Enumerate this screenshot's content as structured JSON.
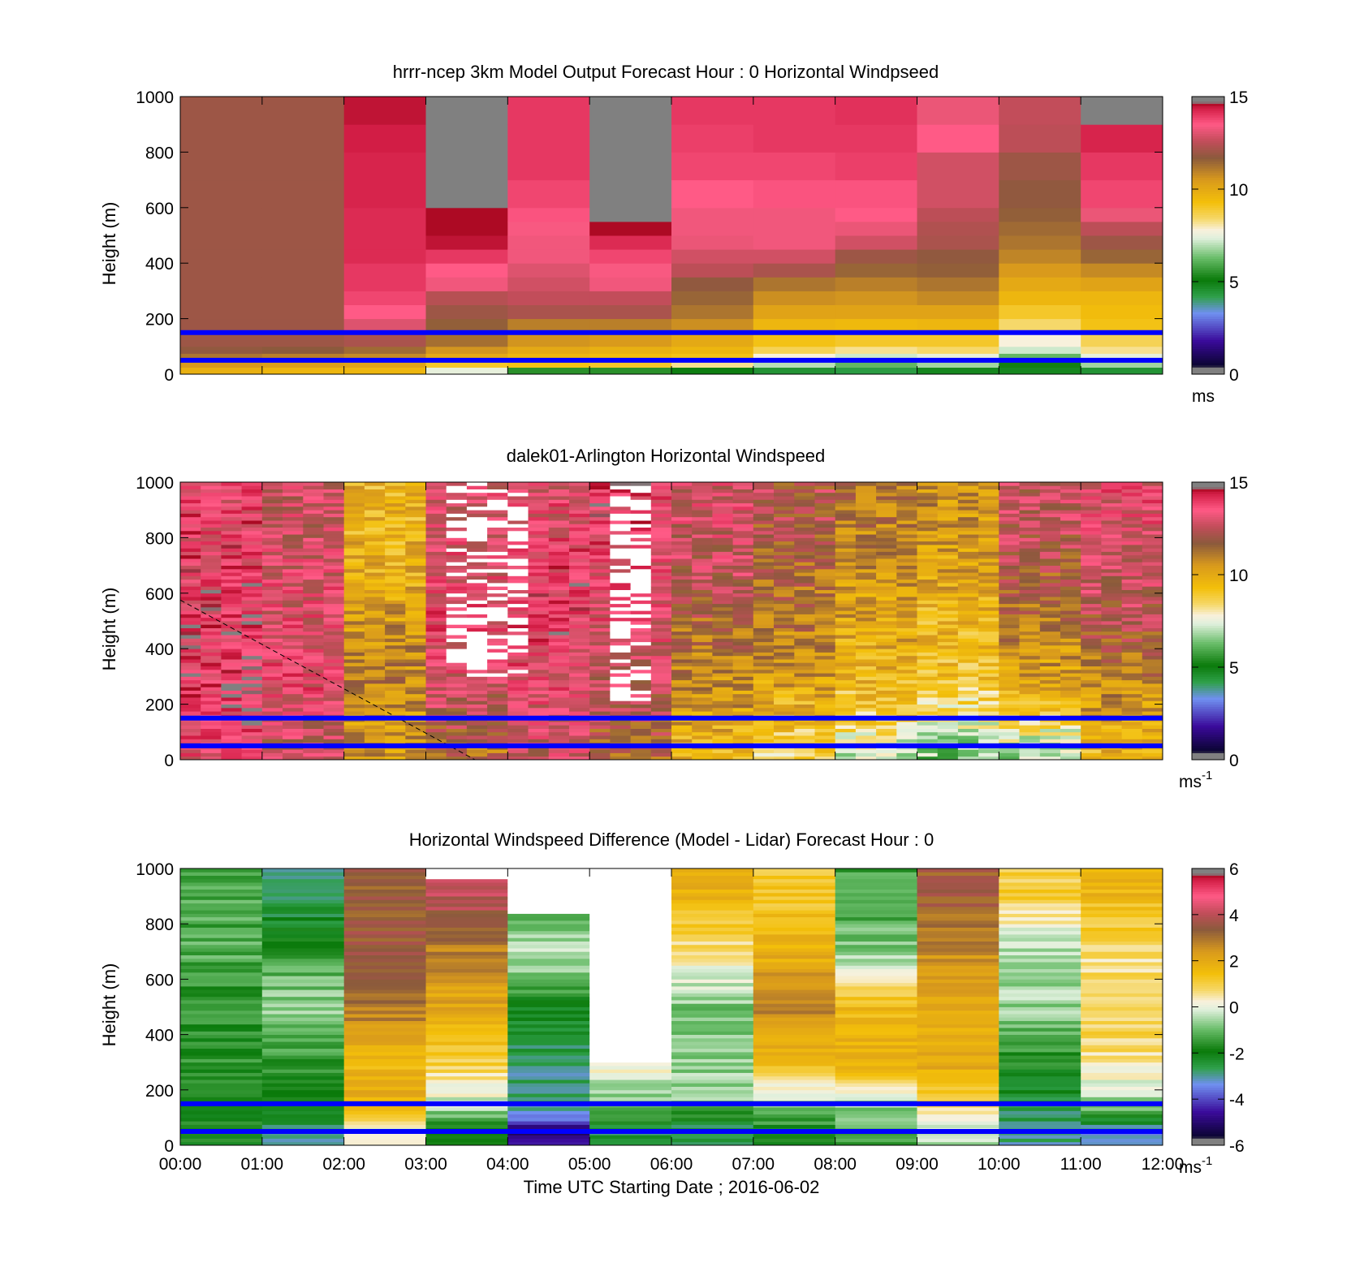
{
  "figure": {
    "xlabel": "Time UTC  Starting Date ; 2016-06-02",
    "x_tick_labels": [
      "00:00",
      "01:00",
      "02:00",
      "03:00",
      "04:00",
      "05:00",
      "06:00",
      "07:00",
      "08:00",
      "09:00",
      "10:00",
      "11:00",
      "12:00"
    ],
    "y_tick_labels": [
      "0",
      "200",
      "400",
      "600",
      "800",
      "1000"
    ],
    "ylabel": "Height (m)",
    "reference_lines_m": [
      50,
      150
    ],
    "reference_line_color": "#0000ff"
  },
  "chart_data": [
    {
      "type": "heatmap",
      "title": "hrrr-ncep 3km Model Output   Forecast Hour : 0 Horizontal Windpseed",
      "ylabel": "Height (m)",
      "xlabel": "",
      "xlim": [
        0,
        12
      ],
      "ylim": [
        0,
        1000
      ],
      "colorbar": {
        "min": 0,
        "max": 15,
        "ticks": [
          "0",
          "5",
          "10",
          "15"
        ],
        "unit": "ms"
      },
      "columns_hours": [
        0,
        1,
        2,
        3,
        4,
        5,
        6,
        7,
        8,
        9,
        10,
        11
      ],
      "height_levels_m": [
        0,
        25,
        50,
        75,
        100,
        150,
        200,
        250,
        300,
        350,
        400,
        450,
        500,
        550,
        600,
        700,
        800,
        900,
        1000
      ],
      "values": [
        [
          9.8,
          10.5,
          11.2,
          11.8,
          12.0,
          12.0,
          12.0,
          12.0,
          12.0,
          12.0,
          12.0,
          12.0,
          12.0,
          12.0,
          12.0,
          12.0,
          12.0,
          12.0
        ],
        [
          9.6,
          10.3,
          11.0,
          11.7,
          12.0,
          12.0,
          12.0,
          12.0,
          12.0,
          12.0,
          12.0,
          12.0,
          12.0,
          12.0,
          12.0,
          12.0,
          12.0,
          12.0
        ],
        [
          9.6,
          10.2,
          10.8,
          11.4,
          12.2,
          13.0,
          13.5,
          13.8,
          14.0,
          14.0,
          14.2,
          14.2,
          14.2,
          14.2,
          14.3,
          14.3,
          14.4,
          14.5
        ],
        [
          7.5,
          9.0,
          10.0,
          10.6,
          11.3,
          11.6,
          12.0,
          12.4,
          13.3,
          13.5,
          14.0,
          14.5,
          14.6,
          14.6,
          null,
          null,
          null,
          null
        ],
        [
          5.5,
          9.2,
          9.6,
          10.0,
          10.6,
          11.0,
          12.2,
          12.6,
          12.8,
          13.0,
          13.3,
          13.3,
          13.4,
          13.6,
          13.8,
          14.0,
          14.0,
          14.0
        ],
        [
          5.5,
          9.0,
          9.4,
          9.8,
          10.5,
          11.0,
          12.2,
          12.6,
          13.3,
          13.4,
          13.8,
          14.2,
          14.6,
          14.8,
          15.0,
          15.0,
          null,
          null
        ],
        [
          5.0,
          8.2,
          9.2,
          9.6,
          10.0,
          10.7,
          11.2,
          11.5,
          11.8,
          12.5,
          12.8,
          13.2,
          13.3,
          13.3,
          13.5,
          13.8,
          13.9,
          14.0
        ],
        [
          4.5,
          7.0,
          7.8,
          8.6,
          9.2,
          9.6,
          10.2,
          10.7,
          11.2,
          12.2,
          12.8,
          13.3,
          13.3,
          13.3,
          13.6,
          13.8,
          14.0,
          14.0
        ],
        [
          4.3,
          6.2,
          7.2,
          8.2,
          9.0,
          9.5,
          10.2,
          10.6,
          11.0,
          11.5,
          12.0,
          12.8,
          13.2,
          13.5,
          13.6,
          13.9,
          14.0,
          14.1
        ],
        [
          4.8,
          6.8,
          7.5,
          8.4,
          9.0,
          9.6,
          10.2,
          10.8,
          11.2,
          11.6,
          11.8,
          12.2,
          12.3,
          12.5,
          12.8,
          12.8,
          13.5,
          13.2
        ],
        [
          4.8,
          5.2,
          6.2,
          7.2,
          7.8,
          8.4,
          9.0,
          9.6,
          10.0,
          10.5,
          10.9,
          11.2,
          11.4,
          11.6,
          11.8,
          12.0,
          12.5,
          12.6
        ],
        [
          4.5,
          6.8,
          7.5,
          8.2,
          8.6,
          9.2,
          9.4,
          9.6,
          10.2,
          10.8,
          11.5,
          12.0,
          12.5,
          13.2,
          13.8,
          14.0,
          14.3,
          14.7
        ]
      ]
    },
    {
      "type": "heatmap",
      "title": "dalek01-Arlington  Horizontal Windspeed",
      "ylabel": "Height (m)",
      "xlabel": "",
      "xlim": [
        0,
        12
      ],
      "ylim": [
        0,
        1000
      ],
      "colorbar": {
        "min": 0,
        "max": 15,
        "ticks": [
          "0",
          "5",
          "10",
          "15"
        ],
        "unit": "ms",
        "unit_exponent": "-1"
      },
      "overlay_dashed_line": {
        "from": [
          0,
          575
        ],
        "to": [
          3.6,
          0
        ]
      },
      "hourly_profile_m_levels": [
        50,
        150,
        300,
        500,
        700,
        900
      ],
      "hourly_profile_values": [
        [
          13.5,
          13.8,
          14.0,
          13.8,
          13.6,
          13.5
        ],
        [
          12.5,
          12.8,
          13.5,
          13.2,
          13.0,
          12.8
        ],
        [
          10.5,
          10.6,
          10.9,
          10.5,
          9.8,
          9.6
        ],
        [
          11.5,
          12.3,
          13.0,
          13.5,
          13.2,
          13.0
        ],
        [
          12.8,
          13.0,
          13.4,
          13.8,
          13.6,
          13.2
        ],
        [
          11.6,
          12.2,
          12.6,
          13.2,
          13.4,
          13.8
        ],
        [
          9.6,
          10.2,
          10.8,
          11.6,
          12.6,
          13.0
        ],
        [
          8.6,
          9.5,
          10.4,
          11.2,
          11.6,
          12.2
        ],
        [
          7.4,
          8.8,
          9.6,
          10.2,
          10.6,
          11.2
        ],
        [
          6.6,
          8.0,
          9.2,
          9.6,
          10.2,
          10.6
        ],
        [
          7.0,
          8.6,
          10.2,
          11.2,
          12.0,
          12.6
        ],
        [
          9.6,
          10.2,
          11.0,
          12.2,
          12.8,
          13.2
        ]
      ]
    },
    {
      "type": "heatmap",
      "title": "Horizontal Windspeed Difference (Model - Lidar) Forecast Hour : 0",
      "ylabel": "Height (m)",
      "xlabel": "Time UTC  Starting Date ; 2016-06-02",
      "xlim": [
        0,
        12
      ],
      "ylim": [
        0,
        1000
      ],
      "colorbar": {
        "min": -6,
        "max": 6,
        "ticks": [
          "-6",
          "-4",
          "-2",
          "0",
          "2",
          "4",
          "6"
        ],
        "unit": "ms",
        "unit_exponent": "-1"
      },
      "hourly_profile_m_levels": [
        50,
        150,
        300,
        500,
        700,
        900
      ],
      "hourly_profile_values": [
        [
          -1.8,
          -1.8,
          -1.6,
          -1.6,
          -1.2,
          -1.3
        ],
        [
          -2.8,
          -2.0,
          -1.4,
          -0.6,
          -1.4,
          -2.8
        ],
        [
          0.0,
          2.0,
          1.5,
          3.0,
          3.4,
          3.4
        ],
        [
          -2.0,
          -0.3,
          1.0,
          2.0,
          2.8,
          4.0
        ],
        [
          -4.8,
          -2.8,
          -2.8,
          -2.0,
          -0.2,
          -2.0
        ],
        [
          -2.5,
          -1.0,
          0.3,
          null,
          null,
          null
        ],
        [
          -2.8,
          -0.8,
          -0.6,
          -0.8,
          0.6,
          1.8
        ],
        [
          -2.0,
          -0.6,
          1.6,
          2.8,
          1.8,
          1.2
        ],
        [
          -1.4,
          -0.5,
          1.8,
          1.6,
          -0.8,
          -1.4
        ],
        [
          -0.5,
          1.0,
          2.0,
          2.0,
          2.6,
          3.4
        ],
        [
          -2.8,
          -2.4,
          -1.8,
          -0.6,
          -0.4,
          1.0
        ],
        [
          -3.4,
          -0.6,
          0.6,
          1.0,
          0.6,
          1.6
        ]
      ]
    }
  ]
}
